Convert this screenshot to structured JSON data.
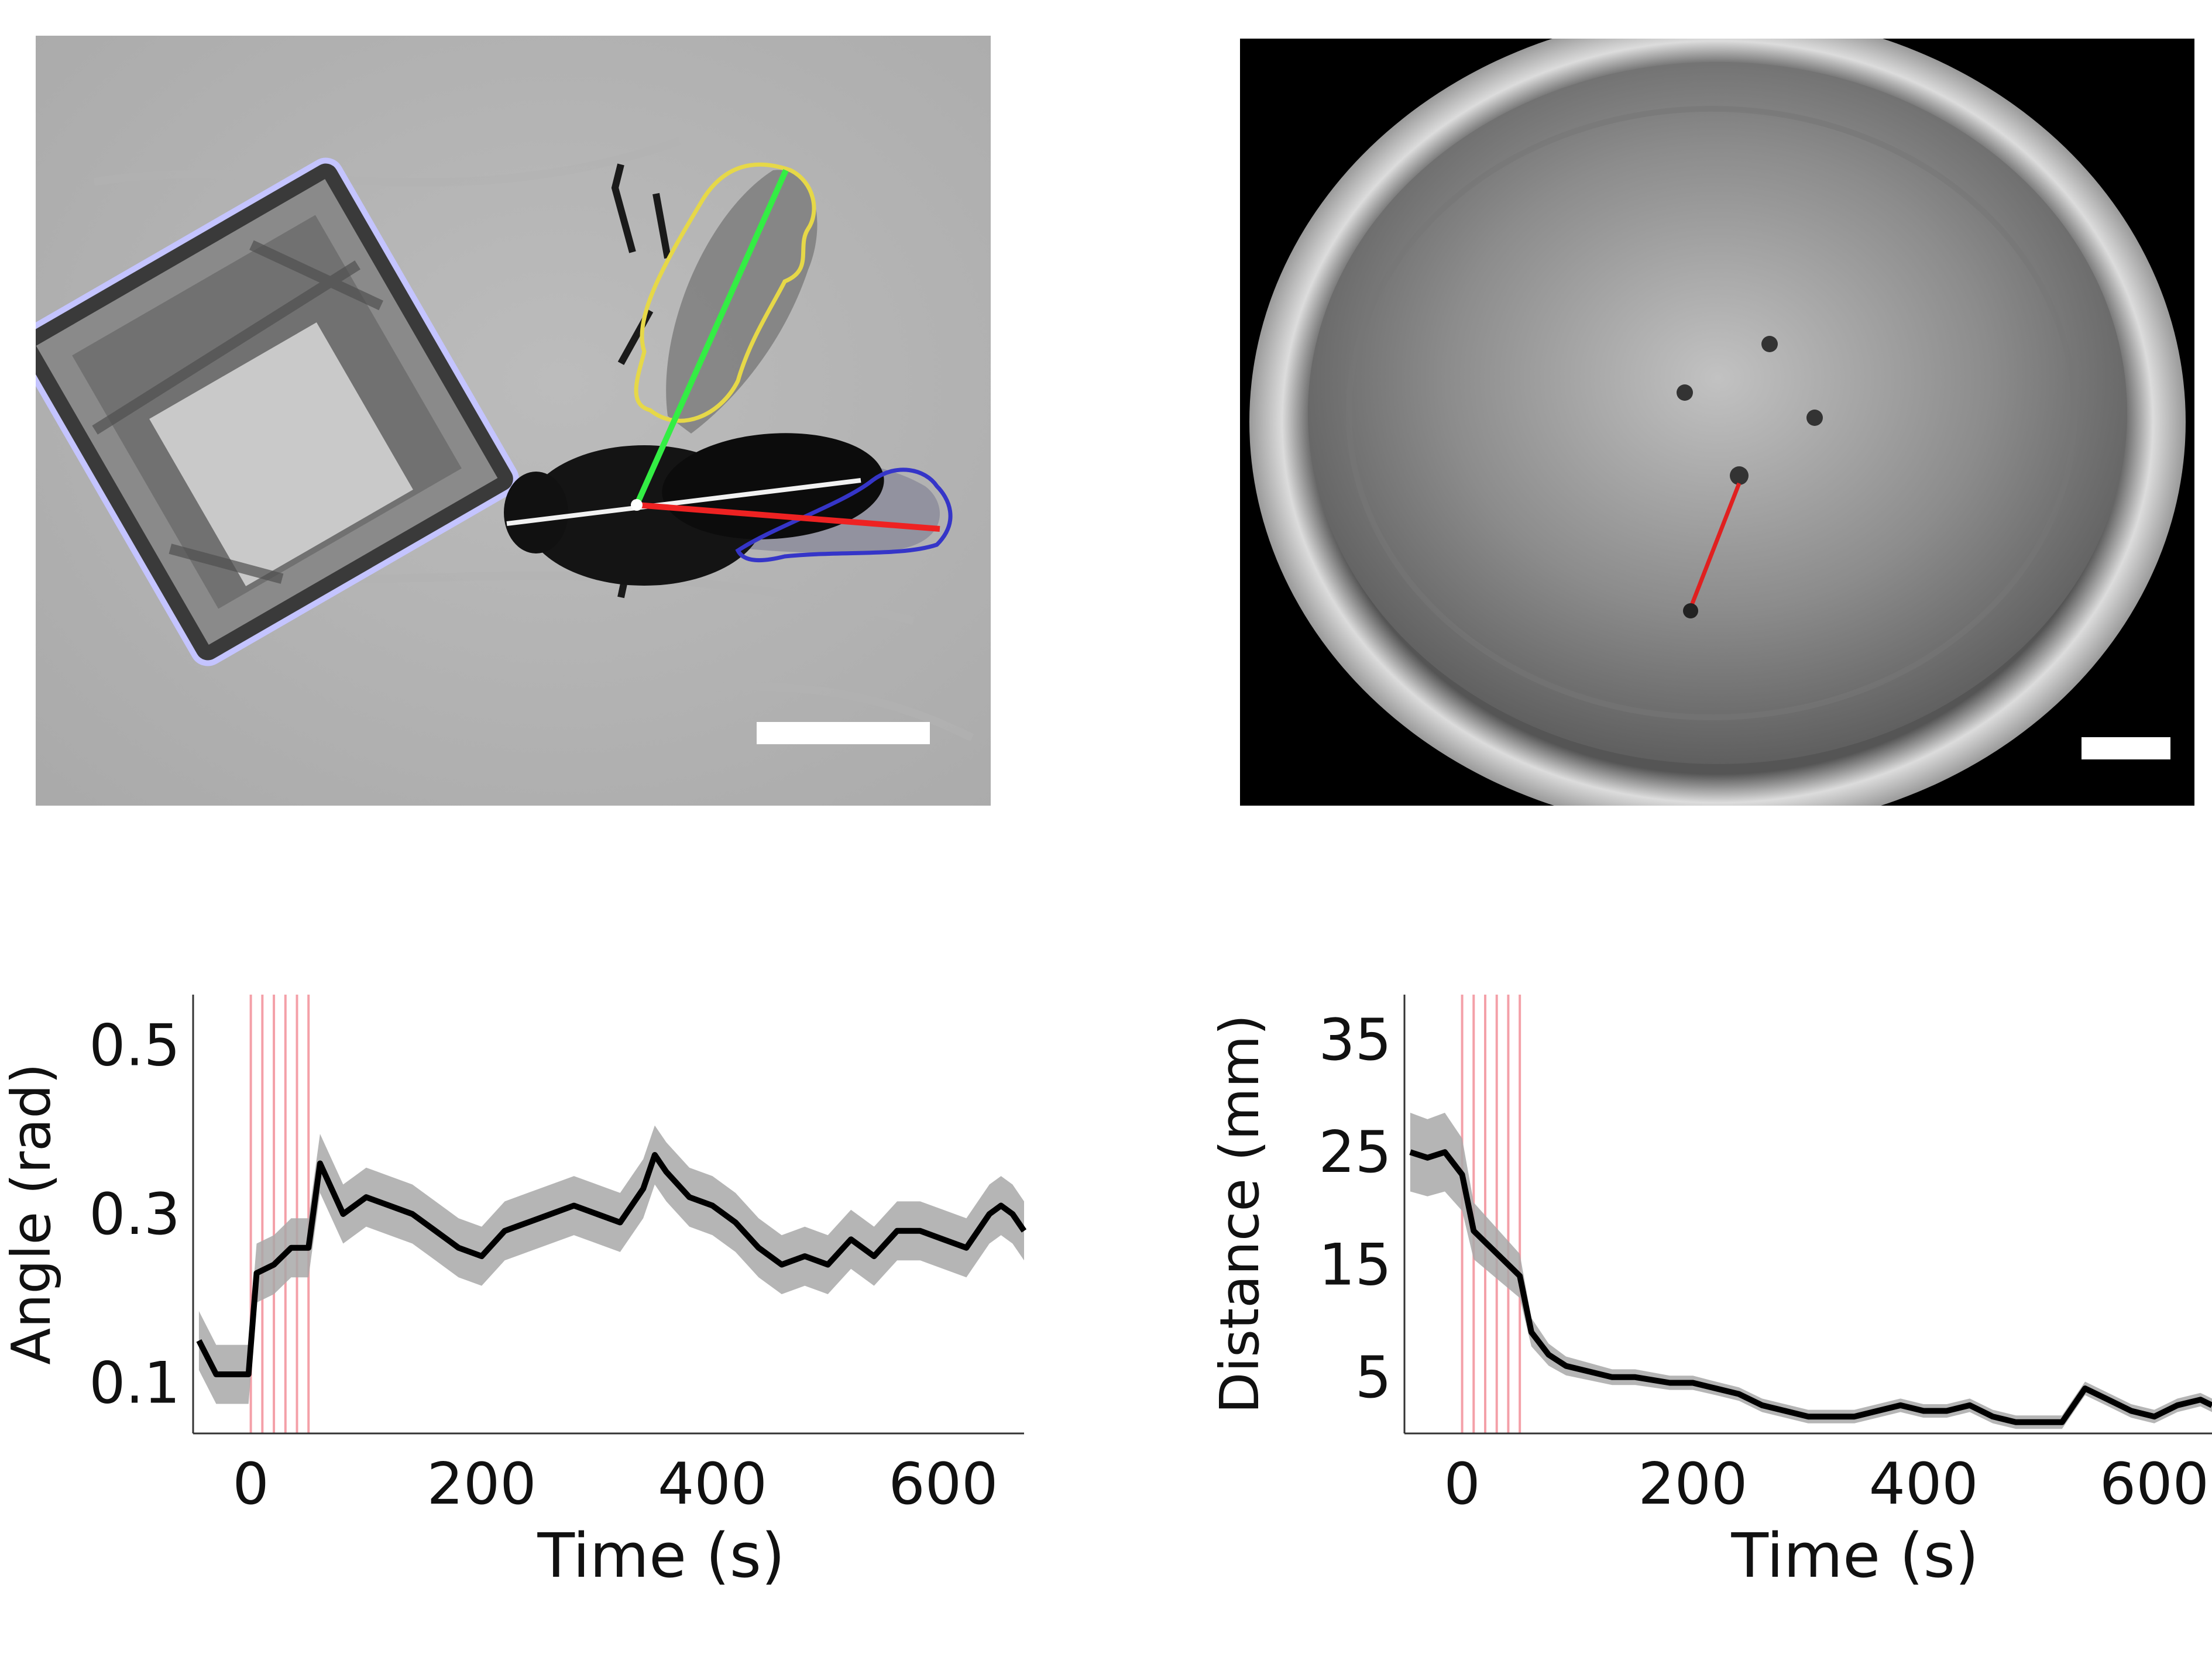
{
  "colors": {
    "wing_left": "#e8d84a",
    "wing_right": "#3a3ad0",
    "wing_axis": "#33ee44",
    "body_axis": "#f0f0f0",
    "wing_angle_line": "#ee2222",
    "food_patch_outline": "#b8b8ff",
    "stimulus_lines": "#f4a0a8",
    "trace": "#000000",
    "band": "#a8a8a8",
    "scale_bar": "#ffffff",
    "arena_track": "#e02020"
  },
  "chart_data": [
    {
      "type": "line",
      "xlabel": "Time (s)",
      "ylabel": "Angle (rad)",
      "xlim": [
        -50,
        670
      ],
      "ylim": [
        0.04,
        0.56
      ],
      "xticks": [
        0,
        200,
        400,
        600
      ],
      "yticks": [
        0.1,
        0.3,
        0.5
      ],
      "stimulus_times": [
        0,
        10,
        20,
        30,
        40,
        50
      ],
      "x": [
        -45,
        -30,
        -15,
        -2,
        5,
        20,
        35,
        50,
        60,
        80,
        100,
        120,
        140,
        160,
        180,
        200,
        220,
        240,
        260,
        280,
        300,
        320,
        340,
        350,
        360,
        380,
        400,
        420,
        440,
        460,
        480,
        500,
        520,
        540,
        560,
        580,
        600,
        620,
        640,
        650,
        660,
        670
      ],
      "y": [
        0.15,
        0.11,
        0.11,
        0.11,
        0.23,
        0.24,
        0.26,
        0.26,
        0.36,
        0.3,
        0.32,
        0.31,
        0.3,
        0.28,
        0.26,
        0.25,
        0.28,
        0.29,
        0.3,
        0.31,
        0.3,
        0.29,
        0.33,
        0.37,
        0.35,
        0.32,
        0.31,
        0.29,
        0.26,
        0.24,
        0.25,
        0.24,
        0.27,
        0.25,
        0.28,
        0.28,
        0.27,
        0.26,
        0.3,
        0.31,
        0.3,
        0.28
      ]
    },
    {
      "type": "line",
      "xlabel": "Time (s)",
      "ylabel": "Distance (mm)",
      "xlim": [
        -50,
        650
      ],
      "ylim": [
        0,
        39
      ],
      "xticks": [
        0,
        200,
        400,
        600
      ],
      "yticks": [
        5,
        15,
        25,
        35
      ],
      "stimulus_times": [
        0,
        10,
        20,
        30,
        40,
        50
      ],
      "x": [
        -45,
        -30,
        -15,
        0,
        10,
        20,
        35,
        50,
        60,
        75,
        90,
        110,
        130,
        150,
        180,
        200,
        220,
        240,
        260,
        280,
        300,
        320,
        340,
        360,
        380,
        400,
        420,
        440,
        460,
        480,
        500,
        520,
        540,
        560,
        580,
        600,
        620,
        640,
        650
      ],
      "y": [
        25,
        24.5,
        25,
        23,
        18,
        17,
        15.5,
        14,
        9,
        7,
        6,
        5.5,
        5,
        5,
        4.5,
        4.5,
        4,
        3.5,
        2.5,
        2,
        1.5,
        1.5,
        1.5,
        2,
        2.5,
        2,
        2,
        2.5,
        1.5,
        1,
        1,
        1,
        4,
        3,
        2,
        1.5,
        2.5,
        3,
        2.5
      ]
    }
  ]
}
